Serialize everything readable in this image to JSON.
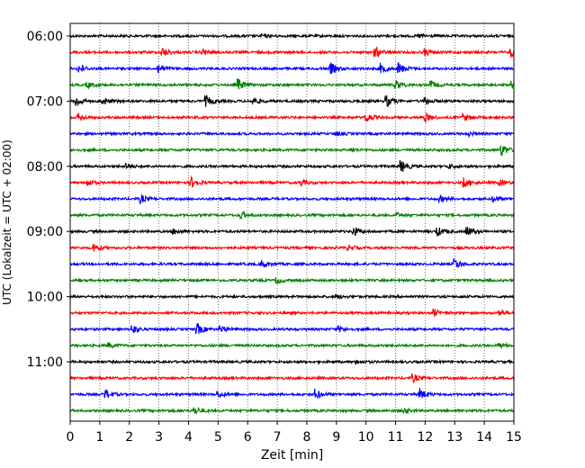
{
  "chart_data": {
    "type": "line",
    "xlabel": "Zeit  [min]",
    "ylabel": "UTC (Lokalzeit = UTC + 02:00)",
    "xlim": [
      0,
      15
    ],
    "x_ticks": [
      "0",
      "1",
      "2",
      "3",
      "4",
      "5",
      "6",
      "7",
      "8",
      "9",
      "10",
      "11",
      "12",
      "13",
      "14",
      "15"
    ],
    "y_tick_labels": [
      "06:00",
      "07:00",
      "08:00",
      "09:00",
      "10:00",
      "11:00"
    ],
    "grid": "vertical dotted lines at each minute",
    "trace_interval_minutes": 15,
    "color_cycle": [
      "#000000",
      "#ff0000",
      "#0000ff",
      "#008000"
    ],
    "traces": [
      {
        "start": "06:00",
        "color": "#000000",
        "events": [
          [
            6.5,
            0.25
          ],
          [
            11.8,
            0.3
          ]
        ]
      },
      {
        "start": "06:15",
        "color": "#ff0000",
        "events": [
          [
            3.1,
            0.8
          ],
          [
            4.5,
            0.5
          ],
          [
            10.3,
            0.9
          ],
          [
            12.0,
            0.5
          ],
          [
            14.9,
            0.8
          ]
        ]
      },
      {
        "start": "06:30",
        "color": "#0000ff",
        "events": [
          [
            0.3,
            0.7
          ],
          [
            3.0,
            0.7
          ],
          [
            8.8,
            1.0
          ],
          [
            10.5,
            0.8
          ],
          [
            11.1,
            1.0
          ]
        ]
      },
      {
        "start": "06:45",
        "color": "#008000",
        "events": [
          [
            0.6,
            0.4
          ],
          [
            5.7,
            0.9
          ],
          [
            11.0,
            0.8
          ],
          [
            12.2,
            0.6
          ],
          [
            14.9,
            0.6
          ]
        ]
      },
      {
        "start": "07:00",
        "color": "#000000",
        "events": [
          [
            0.2,
            0.9
          ],
          [
            1.1,
            0.6
          ],
          [
            4.6,
            0.8
          ],
          [
            6.2,
            0.5
          ],
          [
            10.7,
            0.9
          ],
          [
            12.0,
            0.6
          ]
        ]
      },
      {
        "start": "07:15",
        "color": "#ff0000",
        "events": [
          [
            0.3,
            0.6
          ],
          [
            10.0,
            0.8
          ],
          [
            12.0,
            0.7
          ],
          [
            13.3,
            0.6
          ]
        ]
      },
      {
        "start": "07:30",
        "color": "#0000ff",
        "events": [
          [
            9.0,
            0.3
          ],
          [
            13.5,
            0.3
          ]
        ]
      },
      {
        "start": "07:45",
        "color": "#008000",
        "events": [
          [
            9.5,
            0.3
          ],
          [
            14.6,
            0.9
          ]
        ]
      },
      {
        "start": "08:00",
        "color": "#000000",
        "events": [
          [
            1.9,
            0.4
          ],
          [
            11.2,
            0.9
          ],
          [
            12.8,
            0.3
          ]
        ]
      },
      {
        "start": "08:15",
        "color": "#ff0000",
        "events": [
          [
            0.6,
            0.5
          ],
          [
            4.1,
            0.8
          ],
          [
            7.8,
            0.5
          ],
          [
            13.3,
            0.8
          ],
          [
            14.5,
            0.5
          ]
        ]
      },
      {
        "start": "08:30",
        "color": "#0000ff",
        "events": [
          [
            2.4,
            0.6
          ],
          [
            12.5,
            0.5
          ],
          [
            14.3,
            0.5
          ]
        ]
      },
      {
        "start": "08:45",
        "color": "#008000",
        "events": [
          [
            5.8,
            0.6
          ],
          [
            11.0,
            0.4
          ]
        ]
      },
      {
        "start": "09:00",
        "color": "#000000",
        "events": [
          [
            3.5,
            0.4
          ],
          [
            9.6,
            0.7
          ],
          [
            12.4,
            0.8
          ],
          [
            13.4,
            0.9
          ]
        ]
      },
      {
        "start": "09:15",
        "color": "#ff0000",
        "events": [
          [
            0.8,
            0.7
          ],
          [
            9.4,
            0.4
          ]
        ]
      },
      {
        "start": "09:30",
        "color": "#0000ff",
        "events": [
          [
            6.5,
            0.6
          ],
          [
            13.0,
            0.9
          ]
        ]
      },
      {
        "start": "09:45",
        "color": "#008000",
        "events": [
          [
            7.0,
            0.4
          ]
        ]
      },
      {
        "start": "10:00",
        "color": "#000000",
        "events": [
          [
            9.0,
            0.3
          ]
        ]
      },
      {
        "start": "10:15",
        "color": "#ff0000",
        "events": [
          [
            12.3,
            0.6
          ],
          [
            14.5,
            0.5
          ]
        ]
      },
      {
        "start": "10:30",
        "color": "#0000ff",
        "events": [
          [
            2.1,
            0.8
          ],
          [
            4.3,
            0.9
          ],
          [
            5.1,
            0.5
          ],
          [
            9.1,
            0.4
          ]
        ]
      },
      {
        "start": "10:45",
        "color": "#008000",
        "events": [
          [
            1.3,
            0.4
          ],
          [
            14.5,
            0.4
          ]
        ]
      },
      {
        "start": "11:00",
        "color": "#000000",
        "events": [
          [
            9.7,
            0.3
          ]
        ]
      },
      {
        "start": "11:15",
        "color": "#ff0000",
        "events": [
          [
            11.6,
            0.6
          ]
        ]
      },
      {
        "start": "11:30",
        "color": "#0000ff",
        "events": [
          [
            1.2,
            0.8
          ],
          [
            5.0,
            0.5
          ],
          [
            8.3,
            0.8
          ],
          [
            11.8,
            1.0
          ]
        ]
      },
      {
        "start": "11:45",
        "color": "#008000",
        "events": [
          [
            4.2,
            0.6
          ],
          [
            11.3,
            0.4
          ]
        ]
      }
    ]
  }
}
